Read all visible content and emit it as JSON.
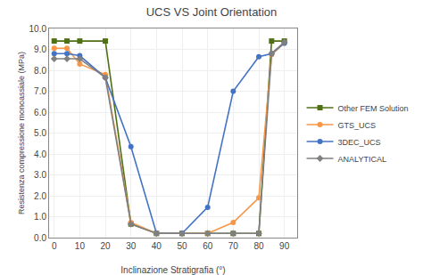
{
  "chart_data": {
    "type": "line",
    "title": "UCS VS Joint Orientation",
    "x_label": "Inclinazione Stratigrafia (°)",
    "y_label": "Resistenza compressione monoassiale (MPa)",
    "x": [
      0,
      5,
      10,
      20,
      30,
      40,
      50,
      60,
      70,
      80,
      85,
      90
    ],
    "series": [
      {
        "name": "Other FEM Solution",
        "color": "#4f7014",
        "marker": "square",
        "values": [
          9.4,
          9.4,
          9.4,
          9.4,
          0.65,
          0.2,
          0.2,
          0.2,
          0.2,
          0.2,
          9.4,
          9.4
        ]
      },
      {
        "name": "GTS_UCS",
        "color": "#f79646",
        "marker": "circle",
        "values": [
          9.05,
          9.05,
          8.3,
          7.8,
          0.72,
          0.2,
          0.2,
          0.2,
          0.72,
          1.9,
          8.75,
          9.3
        ]
      },
      {
        "name": "3DEC_UCS",
        "color": "#4472c4",
        "marker": "circle",
        "values": [
          8.8,
          8.8,
          8.7,
          7.65,
          4.35,
          0.2,
          0.2,
          1.45,
          7.0,
          8.65,
          8.8,
          9.3
        ]
      },
      {
        "name": "ANALYTICAL",
        "color": "#808080",
        "marker": "diamond",
        "values": [
          8.55,
          8.55,
          8.55,
          7.65,
          0.65,
          0.2,
          0.2,
          0.2,
          0.2,
          0.2,
          8.8,
          9.35
        ]
      }
    ],
    "xlim": [
      -2,
      95
    ],
    "ylim": [
      0,
      10.0
    ],
    "xticks": [
      0,
      10,
      20,
      30,
      40,
      50,
      60,
      70,
      80,
      90
    ],
    "yticks": [
      {
        "value": 0,
        "label": "0.0"
      },
      {
        "value": 1,
        "label": "1.0"
      },
      {
        "value": 2,
        "label": "2.0"
      },
      {
        "value": 3,
        "label": "3.0"
      },
      {
        "value": 4,
        "label": "4.0"
      },
      {
        "value": 5,
        "label": "5.0"
      },
      {
        "value": 6,
        "label": "6.0"
      },
      {
        "value": 7,
        "label": "7.0"
      },
      {
        "value": 8,
        "label": "8.0"
      },
      {
        "value": 9,
        "label": "9.0"
      },
      {
        "value": 10,
        "label": "10.0"
      }
    ],
    "grid": true,
    "legend": "right"
  }
}
